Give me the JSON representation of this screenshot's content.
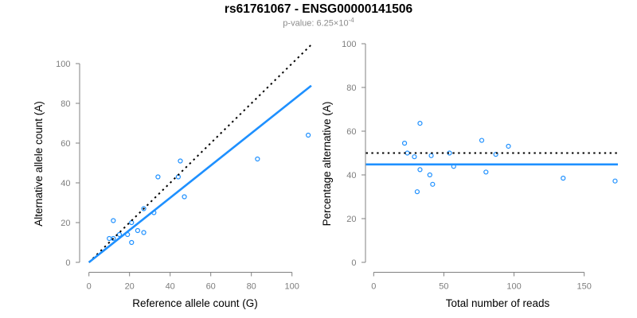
{
  "header": {
    "title": "rs61761067 - ENSG00000141506",
    "pvalue_label": "p-value: ",
    "pvalue_mantissa": "6.25×10",
    "pvalue_exponent": "-4"
  },
  "colors": {
    "accent_blue": "#1E90FF",
    "dashed_black": "#000000",
    "axis_gray": "#808080",
    "tick_label_gray": "#7d7d7d",
    "subtitle_gray": "#8c8c8c",
    "background": "#ffffff"
  },
  "chart_data": [
    {
      "type": "scatter",
      "panel": "allele-counts",
      "xlabel": "Reference allele count (G)",
      "ylabel": "Alternative allele count (A)",
      "xlim": [
        0,
        110
      ],
      "ylim": [
        0,
        110
      ],
      "xticks": [
        0,
        20,
        40,
        60,
        80,
        100
      ],
      "yticks": [
        0,
        20,
        40,
        60,
        80,
        100
      ],
      "grid": false,
      "legend": "none",
      "point_color": "#1E90FF",
      "points": [
        [
          10,
          12
        ],
        [
          12,
          12
        ],
        [
          12,
          21
        ],
        [
          15,
          14
        ],
        [
          19,
          14
        ],
        [
          21,
          10
        ],
        [
          21,
          20
        ],
        [
          24,
          16
        ],
        [
          27,
          15
        ],
        [
          27,
          27
        ],
        [
          32,
          25
        ],
        [
          34,
          43
        ],
        [
          44,
          43
        ],
        [
          45,
          51
        ],
        [
          47,
          33
        ],
        [
          83,
          52
        ],
        [
          108,
          64
        ]
      ],
      "lines": [
        {
          "name": "identity-line",
          "style": "dotted",
          "color": "#000000",
          "slope": 1,
          "intercept": 0
        },
        {
          "name": "fit-line",
          "style": "solid",
          "color": "#1E90FF",
          "slope": 0.812,
          "intercept": 0
        }
      ]
    },
    {
      "type": "scatter",
      "panel": "percentage-alternative",
      "xlabel": "Total number of reads",
      "ylabel": "Percentage alternative (A)",
      "xlim": [
        0,
        175
      ],
      "ylim": [
        0,
        100
      ],
      "xticks": [
        0,
        50,
        100,
        150
      ],
      "yticks": [
        0,
        20,
        40,
        60,
        80,
        100
      ],
      "grid": false,
      "legend": "none",
      "point_color": "#1E90FF",
      "points": [
        [
          22,
          54.5
        ],
        [
          24,
          50
        ],
        [
          33,
          63.6
        ],
        [
          29,
          48.3
        ],
        [
          33,
          42.4
        ],
        [
          31,
          32.3
        ],
        [
          41,
          48.8
        ],
        [
          40,
          40
        ],
        [
          42,
          35.7
        ],
        [
          54,
          50
        ],
        [
          57,
          43.9
        ],
        [
          77,
          55.8
        ],
        [
          87,
          49.4
        ],
        [
          96,
          53.1
        ],
        [
          80,
          41.3
        ],
        [
          135,
          38.5
        ],
        [
          172,
          37.2
        ]
      ],
      "lines": [
        {
          "name": "expected-50pct-line",
          "style": "dotted",
          "color": "#000000",
          "y": 50
        },
        {
          "name": "mean-pct-line",
          "style": "solid",
          "color": "#1E90FF",
          "y": 44.8
        }
      ]
    }
  ]
}
